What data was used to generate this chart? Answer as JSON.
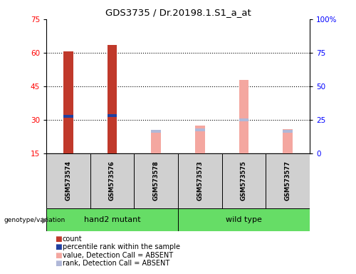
{
  "title": "GDS3735 / Dr.20198.1.S1_a_at",
  "samples": [
    "GSM573574",
    "GSM573576",
    "GSM573578",
    "GSM573573",
    "GSM573575",
    "GSM573577"
  ],
  "count_values": [
    60.5,
    63.5,
    null,
    null,
    null,
    null
  ],
  "percentile_rank_values": [
    31.5,
    32.0,
    null,
    null,
    null,
    null
  ],
  "absent_value_values": [
    null,
    null,
    25.5,
    27.5,
    48.0,
    26.0
  ],
  "absent_rank_values": [
    null,
    null,
    25.0,
    25.5,
    30.0,
    25.0
  ],
  "ylim_left": [
    15,
    75
  ],
  "ylim_right": [
    0,
    100
  ],
  "yticks_left": [
    15,
    30,
    45,
    60,
    75
  ],
  "yticks_right": [
    0,
    25,
    50,
    75,
    100
  ],
  "color_count": "#c0392b",
  "color_percentile": "#2040a0",
  "color_absent_value": "#f4a7a0",
  "color_absent_rank": "#b0b8d8",
  "bar_width": 0.22,
  "group1_label": "hand2 mutant",
  "group2_label": "wild type",
  "group_color": "#66dd66",
  "sample_box_color": "#d0d0d0",
  "legend_items": [
    {
      "color": "#c0392b",
      "label": "count"
    },
    {
      "color": "#2040a0",
      "label": "percentile rank within the sample"
    },
    {
      "color": "#f4a7a0",
      "label": "value, Detection Call = ABSENT"
    },
    {
      "color": "#b0b8d8",
      "label": "rank, Detection Call = ABSENT"
    }
  ]
}
